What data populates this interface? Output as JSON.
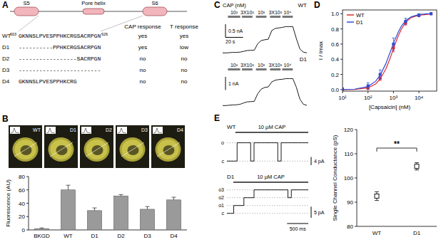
{
  "panel_letters": [
    "A",
    "B",
    "C",
    "D",
    "E"
  ],
  "topology": {
    "segments": [
      "S5",
      "Pore helix",
      "S6"
    ]
  },
  "table": {
    "columns": [
      "CAP response",
      "T response"
    ],
    "rows": [
      {
        "name": "WT",
        "start": "603",
        "sequence": "GKNNSLPVESPPHKCRGSACRPGN",
        "end": "626",
        "cells": [
          "yes",
          "yes"
        ]
      },
      {
        "name": "D1",
        "sequence": "----------PPHKCRGSACRPGN",
        "cells": [
          "yes",
          "low"
        ]
      },
      {
        "name": "D2",
        "sequence": "-----------------SACRPGN",
        "cells": [
          "no",
          "no"
        ]
      },
      {
        "name": "D3",
        "sequence": "------------------------",
        "cells": [
          "no",
          "no"
        ]
      },
      {
        "name": "D4",
        "sequence": "GKNNSLPVESPPHKCRG",
        "cells": [
          "no",
          "no"
        ]
      }
    ]
  },
  "images": {
    "labels": [
      "WT",
      "D1",
      "D2",
      "D3",
      "D4"
    ]
  },
  "chart_data": [
    {
      "type": "bar",
      "y_label": "Fluorescence (AU)",
      "categories": [
        "BKGD",
        "WT",
        "D1",
        "D2",
        "D3",
        "D4"
      ],
      "values": [
        2,
        60,
        29,
        51,
        31,
        45
      ],
      "errors": [
        1,
        7,
        4,
        2,
        4,
        4
      ],
      "color": "#9a9a9a",
      "ylim": [
        0,
        80
      ],
      "yticks": [
        0,
        20,
        40,
        60,
        80
      ]
    },
    {
      "type": "line",
      "name": "WT",
      "annotation": "CAP (nM)",
      "color": "#000000",
      "tick_labels": false,
      "x": [
        0,
        4,
        8,
        12,
        16,
        20,
        24,
        28,
        32,
        36,
        40,
        44,
        48,
        52,
        56,
        60,
        64,
        68,
        72,
        76,
        80,
        84,
        88,
        92,
        96
      ],
      "values": [
        0,
        0,
        0.01,
        0.02,
        0.02,
        0.03,
        0.06,
        0.09,
        0.1,
        0.1,
        0.35,
        0.47,
        0.5,
        0.52,
        0.85,
        0.93,
        0.95,
        0.97,
        1.0,
        1.0,
        1.0,
        0.55,
        0.15,
        0.03,
        0
      ],
      "xlim": [
        0,
        96
      ],
      "ylim": [
        -0.1,
        1.2
      ],
      "applications": [
        {
          "label": "10²",
          "start": 6,
          "end": 20
        },
        {
          "label": "3X10²",
          "start": 22,
          "end": 34
        },
        {
          "label": "10³",
          "start": 38,
          "end": 50
        },
        {
          "label": "3X10³",
          "start": 54,
          "end": 66
        },
        {
          "label": "10⁴",
          "start": 68,
          "end": 80
        }
      ],
      "scale_bars": {
        "current": {
          "value": 0.5,
          "label": "0.5 nA"
        },
        "time": {
          "value": 20,
          "label": "20 s"
        }
      }
    },
    {
      "type": "line",
      "name": "D1",
      "color": "#000000",
      "tick_labels": false,
      "x": [
        0,
        4,
        8,
        12,
        16,
        20,
        24,
        28,
        32,
        36,
        40,
        44,
        48,
        52,
        56,
        60,
        64,
        68,
        72,
        76,
        80,
        84,
        88,
        92,
        96
      ],
      "values": [
        0,
        0,
        0.03,
        0.05,
        0.06,
        0.1,
        0.2,
        0.28,
        0.3,
        0.32,
        0.9,
        1.25,
        1.38,
        1.42,
        1.8,
        1.93,
        1.98,
        2.0,
        2.05,
        2.05,
        2.05,
        1.4,
        0.5,
        0.1,
        0.02
      ],
      "xlim": [
        0,
        96
      ],
      "ylim": [
        -0.2,
        2.4
      ],
      "applications": [
        {
          "label": "10²",
          "start": 6,
          "end": 20
        },
        {
          "label": "3X10²",
          "start": 22,
          "end": 34
        },
        {
          "label": "10³",
          "start": 38,
          "end": 50
        },
        {
          "label": "3X10³",
          "start": 54,
          "end": 66
        },
        {
          "label": "10⁴",
          "start": 68,
          "end": 80
        }
      ],
      "scale_bars": {
        "current": {
          "value": 1,
          "label": "1 nA"
        }
      }
    },
    {
      "type": "scatter",
      "x_label": "[Capsaicin] (nM)",
      "y_label": "I / Imax",
      "log": "x",
      "legend": "upper left",
      "xlim": [
        10,
        50000
      ],
      "ylim": [
        -0.02,
        1.05
      ],
      "xticks": [
        {
          "value": 10,
          "label": "10¹"
        },
        {
          "value": 100,
          "label": "10²"
        },
        {
          "value": 1000,
          "label": "10³"
        },
        {
          "value": 10000,
          "label": "10⁴"
        }
      ],
      "yticks": [
        {
          "value": 0,
          "label": "0.0"
        },
        {
          "value": 0.2,
          "label": "0.2"
        },
        {
          "value": 0.4,
          "label": "0.4"
        },
        {
          "value": 0.6,
          "label": "0.6"
        },
        {
          "value": 0.8,
          "label": "0.8"
        },
        {
          "value": 1,
          "label": "1.0"
        }
      ],
      "series": [
        {
          "name": "WT",
          "color": "#e0282e",
          "marker": "square",
          "x": [
            10,
            100,
            300,
            1000,
            3000,
            10000,
            30000
          ],
          "values": [
            0,
            0.02,
            0.15,
            0.55,
            0.88,
            0.98,
            1.0
          ],
          "errors": [
            0.01,
            0.02,
            0.03,
            0.05,
            0.03,
            0.01,
            0.01
          ],
          "fit": {
            "x": [
              10,
              30,
              100,
              200,
              300,
              500,
              700,
              1000,
              1500,
              2000,
              3000,
              5000,
              10000,
              20000,
              30000
            ],
            "values": [
              0,
              0.003,
              0.023,
              0.074,
              0.14,
              0.27,
              0.39,
              0.54,
              0.7,
              0.79,
              0.89,
              0.95,
              0.98,
              0.99,
              1.0
            ]
          }
        },
        {
          "name": "D1",
          "color": "#2b4fd8",
          "marker": "square",
          "x": [
            10,
            100,
            300,
            1000,
            3000,
            10000,
            30000
          ],
          "values": [
            0.01,
            0.05,
            0.2,
            0.6,
            0.9,
            0.98,
            1.0
          ],
          "errors": [
            0.01,
            0.04,
            0.06,
            0.08,
            0.04,
            0.02,
            0.01
          ],
          "fit": {
            "x": [
              10,
              30,
              100,
              200,
              300,
              500,
              700,
              1000,
              1500,
              2000,
              3000,
              5000,
              10000,
              20000,
              30000
            ],
            "values": [
              0.001,
              0.006,
              0.04,
              0.11,
              0.19,
              0.34,
              0.47,
              0.61,
              0.75,
              0.83,
              0.91,
              0.96,
              0.99,
              1.0,
              1.0
            ]
          }
        }
      ]
    },
    {
      "type": "line",
      "name": "WT",
      "annotation": "10 µM CAP",
      "color": "#000000",
      "tick_labels": false,
      "line_style": "step",
      "x": [
        0,
        80,
        160,
        240,
        320,
        400,
        480,
        560,
        640,
        720,
        800,
        880,
        960,
        1040,
        1120,
        1200,
        1280,
        1360,
        1440,
        1520,
        1600,
        1680,
        1760,
        1840,
        1920
      ],
      "values": [
        0,
        0,
        0,
        9,
        9,
        9,
        9,
        0,
        9,
        9,
        9,
        9,
        9,
        9,
        9,
        0,
        9,
        9,
        9,
        9,
        9,
        9,
        9,
        9,
        9
      ],
      "xlim": [
        0,
        1920
      ],
      "ylim": [
        -2,
        12
      ],
      "application": {
        "start": 200
      },
      "levels": [
        {
          "label": "o",
          "value": 9
        },
        {
          "label": "c",
          "value": 0
        }
      ],
      "scale_bars": {
        "current": {
          "value": 4,
          "label": "4 pA"
        }
      }
    },
    {
      "type": "line",
      "name": "D1",
      "annotation": "10 µM CAP",
      "color": "#000000",
      "tick_labels": false,
      "line_style": "step",
      "x": [
        0,
        80,
        160,
        240,
        320,
        400,
        480,
        560,
        640,
        720,
        800,
        880,
        960,
        1040,
        1120,
        1200,
        1280,
        1360,
        1440,
        1520,
        1600,
        1680,
        1760,
        1840,
        1920
      ],
      "values": [
        0,
        0,
        3.5,
        3.5,
        3.5,
        7,
        7,
        7,
        10.5,
        10.5,
        10.5,
        10.5,
        10.5,
        10.5,
        10.5,
        10.5,
        10.5,
        10.5,
        7,
        10.5,
        10.5,
        10.5,
        10.5,
        10.5,
        10.5
      ],
      "xlim": [
        0,
        1920
      ],
      "ylim": [
        -2,
        12
      ],
      "application": {
        "start": 150
      },
      "levels": [
        {
          "label": "o3",
          "value": 10.5
        },
        {
          "label": "o2",
          "value": 7
        },
        {
          "label": "o1",
          "value": 3.5
        },
        {
          "label": "c",
          "value": 0
        }
      ],
      "scale_bars": {
        "current": {
          "value": 5,
          "label": "5 pA"
        },
        "time": {
          "value": 500,
          "label": "500 ms"
        }
      }
    },
    {
      "type": "scatter",
      "y_label": "Single Channel Conductance (pS)",
      "categories": [
        "WT",
        "D1"
      ],
      "values": [
        92.5,
        104.8
      ],
      "errors": [
        1.8,
        1.5
      ],
      "marker": "open_square",
      "color": "#000000",
      "ylim": [
        80,
        120
      ],
      "yticks": [
        80,
        90,
        100,
        110,
        120
      ],
      "annotation": "**"
    }
  ]
}
